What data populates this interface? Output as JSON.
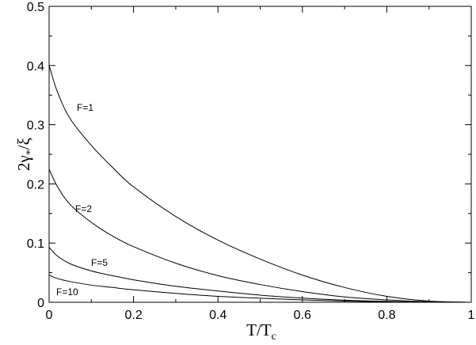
{
  "chart_data": {
    "type": "line",
    "xlabel": "T/Tc",
    "ylabel": "2γ*/ξ",
    "xlim": [
      0,
      1
    ],
    "ylim": [
      0,
      0.5
    ],
    "xticks": [
      0,
      0.2,
      0.4,
      0.6,
      0.8,
      1
    ],
    "xtick_labels": [
      "0",
      "0.2",
      "0.4",
      "0.6",
      "0.8",
      "1"
    ],
    "yticks": [
      0,
      0.1,
      0.2,
      0.3,
      0.4,
      0.5
    ],
    "ytick_labels": [
      "0",
      "0.1",
      "0.2",
      "0.3",
      "0.4",
      "0.5"
    ],
    "grid": false,
    "legend": "none",
    "series": [
      {
        "name": "F=1",
        "x": [
          0,
          0.02,
          0.05,
          0.1,
          0.15,
          0.2,
          0.3,
          0.4,
          0.5,
          0.6,
          0.7,
          0.8,
          0.9,
          1.0
        ],
        "y": [
          0.4,
          0.355,
          0.31,
          0.265,
          0.228,
          0.195,
          0.145,
          0.105,
          0.073,
          0.046,
          0.025,
          0.01,
          0.002,
          0.0
        ]
      },
      {
        "name": "F=2",
        "x": [
          0,
          0.02,
          0.05,
          0.1,
          0.15,
          0.2,
          0.3,
          0.4,
          0.5,
          0.6,
          0.7,
          0.8,
          0.9,
          1.0
        ],
        "y": [
          0.225,
          0.195,
          0.165,
          0.135,
          0.112,
          0.094,
          0.066,
          0.045,
          0.03,
          0.018,
          0.009,
          0.004,
          0.001,
          0.0
        ]
      },
      {
        "name": "F=5",
        "x": [
          0,
          0.02,
          0.05,
          0.1,
          0.15,
          0.2,
          0.3,
          0.4,
          0.5,
          0.6,
          0.7,
          0.8,
          0.9,
          1.0
        ],
        "y": [
          0.093,
          0.078,
          0.065,
          0.053,
          0.045,
          0.038,
          0.027,
          0.019,
          0.012,
          0.007,
          0.0035,
          0.0015,
          0.0003,
          0.0
        ]
      },
      {
        "name": "F=10",
        "x": [
          0,
          0.02,
          0.05,
          0.1,
          0.15,
          0.2,
          0.3,
          0.4,
          0.5,
          0.6,
          0.7,
          0.8,
          0.9,
          1.0
        ],
        "y": [
          0.046,
          0.04,
          0.035,
          0.029,
          0.025,
          0.021,
          0.015,
          0.01,
          0.0068,
          0.004,
          0.002,
          0.0008,
          0.0001,
          0.0
        ]
      }
    ]
  }
}
